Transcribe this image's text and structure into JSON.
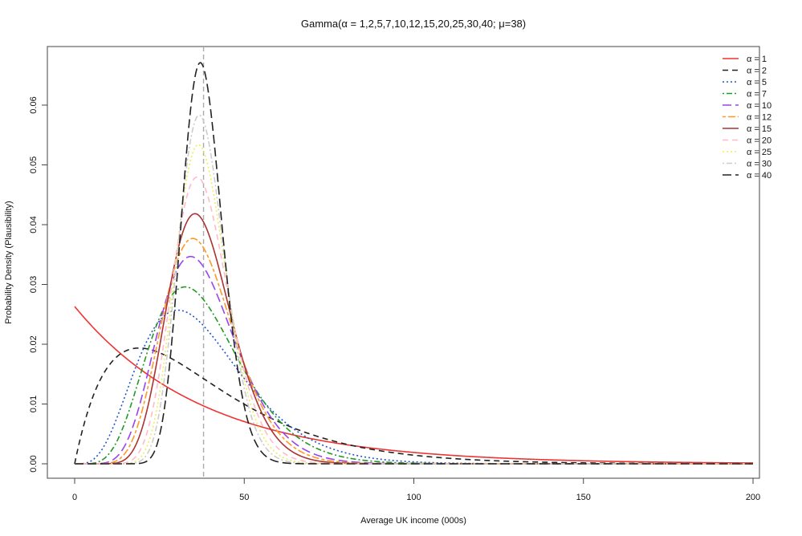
{
  "chart_data": {
    "type": "line",
    "title": "Gamma(α = 1,2,5,7,10,12,15,20,25,30,40;  μ=38)",
    "xlabel": "Average UK income (000s)",
    "ylabel": "Probability Density (Plausibility)",
    "xlim": [
      0,
      200
    ],
    "ylim": [
      0,
      0.07
    ],
    "x_ticks": [
      0,
      50,
      100,
      150,
      200
    ],
    "y_ticks": [
      0.0,
      0.01,
      0.02,
      0.03,
      0.04,
      0.05,
      0.06
    ],
    "y_tick_labels": [
      "0.00",
      "0.01",
      "0.02",
      "0.03",
      "0.04",
      "0.05",
      "0.06"
    ],
    "mean_line_x": 38,
    "mean": 38,
    "legend_position": "top-right",
    "grid": false,
    "series": [
      {
        "name": "α = 1",
        "alpha": 1,
        "color": "#ee3333",
        "dash": "solid"
      },
      {
        "name": "α = 2",
        "alpha": 2,
        "color": "#222222",
        "dash": "dashed"
      },
      {
        "name": "α = 5",
        "alpha": 5,
        "color": "#2255cc",
        "dash": "dotted"
      },
      {
        "name": "α = 7",
        "alpha": 7,
        "color": "#229922",
        "dash": "dotdash"
      },
      {
        "name": "α = 10",
        "alpha": 10,
        "color": "#9944ee",
        "dash": "longdash"
      },
      {
        "name": "α = 12",
        "alpha": 12,
        "color": "#ff9922",
        "dash": "twodash"
      },
      {
        "name": "α = 15",
        "alpha": 15,
        "color": "#aa3333",
        "dash": "solid"
      },
      {
        "name": "α = 20",
        "alpha": 20,
        "color": "#ffbbcc",
        "dash": "dashed"
      },
      {
        "name": "α = 25",
        "alpha": 25,
        "color": "#eeee55",
        "dash": "dotted"
      },
      {
        "name": "α = 30",
        "alpha": 30,
        "color": "#cccccc",
        "dash": "dotdash"
      },
      {
        "name": "α = 40",
        "alpha": 40,
        "color": "#222222",
        "dash": "longdash"
      }
    ]
  }
}
